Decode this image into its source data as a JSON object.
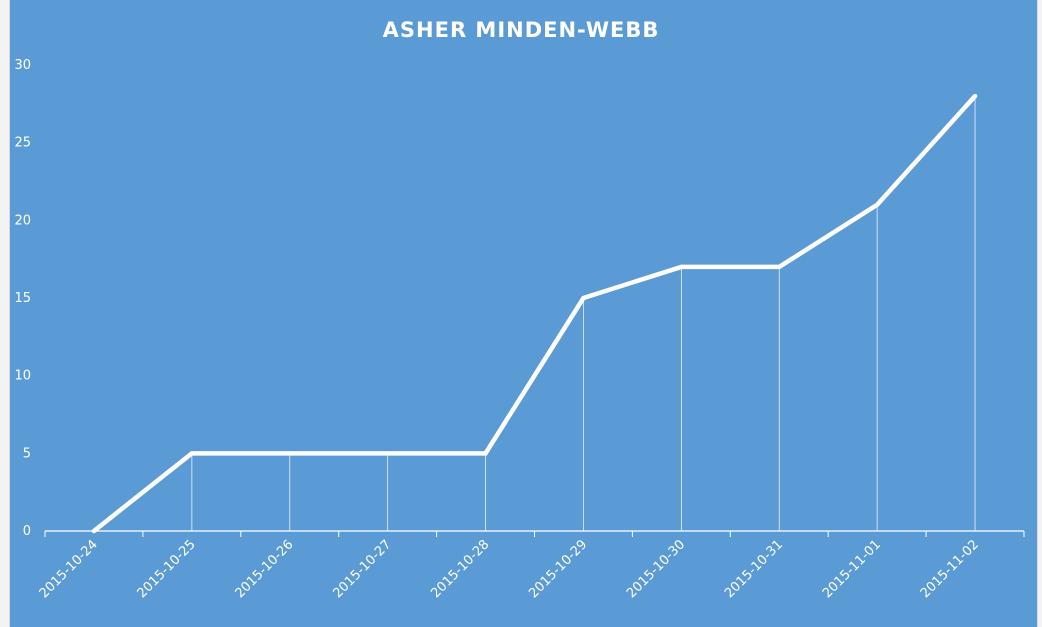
{
  "chart_data": {
    "type": "line",
    "title": "ASHER MINDEN-WEBB",
    "xlabel": "",
    "ylabel": "",
    "categories": [
      "2015-10-24",
      "2015-10-25",
      "2015-10-26",
      "2015-10-27",
      "2015-10-28",
      "2015-10-29",
      "2015-10-30",
      "2015-10-31",
      "2015-11-01",
      "2015-11-02"
    ],
    "series": [
      {
        "values": [
          0,
          5,
          5,
          5,
          5,
          15,
          17,
          17,
          21,
          28
        ]
      }
    ],
    "ylim": [
      0,
      30
    ],
    "yticks": [
      "0",
      "5",
      "10",
      "15",
      "20",
      "25",
      "30"
    ],
    "grid": false,
    "drop_lines": true,
    "legend": "none",
    "colors": {
      "background": "#5b9bd5",
      "line": "#ffffff",
      "text": "#ffffff"
    }
  }
}
